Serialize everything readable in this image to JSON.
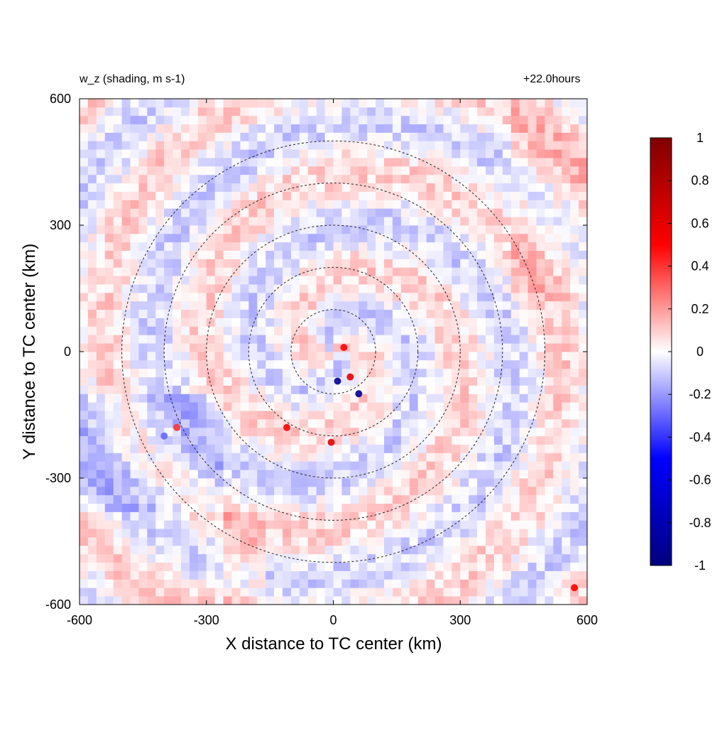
{
  "chart_data": {
    "type": "heatmap",
    "title": "w_z (shading, m s-1)",
    "annotation": "+22.0hours",
    "xlabel": "X distance to TC center (km)",
    "ylabel": "Y distance to TC center (km)",
    "xlim": [
      -600,
      600
    ],
    "ylim": [
      -600,
      600
    ],
    "xticks": [
      -600,
      -300,
      0,
      300,
      600
    ],
    "yticks": [
      -600,
      -300,
      0,
      300,
      600
    ],
    "colorbar": {
      "range": [
        -1,
        1
      ],
      "ticks": [
        1,
        0.8,
        0.6,
        0.4,
        0.2,
        0,
        -0.2,
        -0.4,
        -0.6,
        -0.8,
        -1
      ],
      "colors": [
        "#00007f",
        "#0000ff",
        "#ffffff",
        "#ff0000",
        "#7f0000"
      ]
    },
    "range_rings_km": [
      100,
      200,
      300,
      400,
      500
    ],
    "field_features": [
      {
        "x": 10,
        "y": -70,
        "w": -0.9
      },
      {
        "x": 60,
        "y": -100,
        "w": -0.9
      },
      {
        "x": 40,
        "y": -60,
        "w": 0.6
      },
      {
        "x": 25,
        "y": 10,
        "w": 0.5
      },
      {
        "x": -5,
        "y": -215,
        "w": 0.6
      },
      {
        "x": -110,
        "y": -180,
        "w": 0.5
      },
      {
        "x": -370,
        "y": -180,
        "w": 0.4
      },
      {
        "x": -400,
        "y": -200,
        "w": -0.3
      },
      {
        "x": 570,
        "y": -560,
        "w": 0.5
      }
    ]
  }
}
